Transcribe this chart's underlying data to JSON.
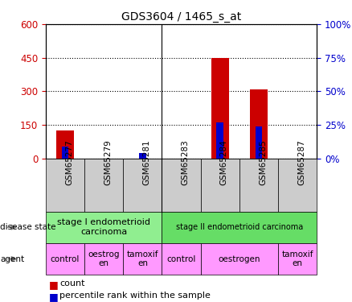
{
  "title": "GDS3604 / 1465_s_at",
  "samples": [
    "GSM65277",
    "GSM65279",
    "GSM65281",
    "GSM65283",
    "GSM65284",
    "GSM65285",
    "GSM65287"
  ],
  "count_values": [
    125,
    0,
    0,
    0,
    450,
    310,
    0
  ],
  "percentile_values": [
    55,
    0,
    25,
    0,
    160,
    145,
    0
  ],
  "count_bar_color": "#cc0000",
  "percentile_bar_color": "#0000cc",
  "left_yticks": [
    0,
    150,
    300,
    450,
    600
  ],
  "right_yticks": [
    0,
    25,
    50,
    75,
    100
  ],
  "ylim_left": [
    0,
    600
  ],
  "ylim_right": [
    0,
    100
  ],
  "disease_state": [
    {
      "label": "stage I endometrioid\ncarcinoma",
      "start": 0,
      "end": 3,
      "color": "#90ee90"
    },
    {
      "label": "stage II endometrioid carcinoma",
      "start": 3,
      "end": 7,
      "color": "#66dd66"
    }
  ],
  "agent": [
    {
      "label": "control",
      "start": 0,
      "end": 1,
      "color": "#ff99ff"
    },
    {
      "label": "oestrog\nen",
      "start": 1,
      "end": 2,
      "color": "#ff99ff"
    },
    {
      "label": "tamoxif\nen",
      "start": 2,
      "end": 3,
      "color": "#ff99ff"
    },
    {
      "label": "control",
      "start": 3,
      "end": 4,
      "color": "#ff99ff"
    },
    {
      "label": "oestrogen",
      "start": 4,
      "end": 6,
      "color": "#ff99ff"
    },
    {
      "label": "tamoxif\nen",
      "start": 6,
      "end": 7,
      "color": "#ff99ff"
    }
  ],
  "separator_after": [
    2
  ],
  "background_color": "#ffffff",
  "tick_label_color_left": "#cc0000",
  "tick_label_color_right": "#0000cc",
  "xtick_bg_color": "#cccccc"
}
